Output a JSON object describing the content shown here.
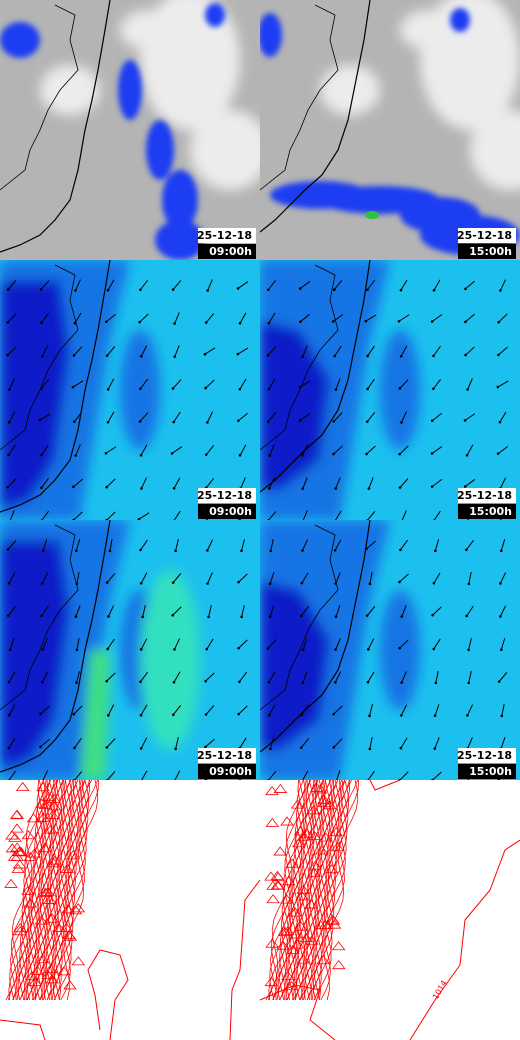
{
  "panels": [
    {
      "date": "25-12-18",
      "time": "09:00h"
    },
    {
      "date": "25-12-18",
      "time": "15:00h"
    },
    {
      "date": "25-12-18",
      "time": "09:00h"
    },
    {
      "date": "25-12-18",
      "time": "15:00h"
    },
    {
      "date": "25-12-18",
      "time": "09:00h"
    },
    {
      "date": "25-12-18",
      "time": "15:00h"
    }
  ],
  "contour_label": "1014"
}
